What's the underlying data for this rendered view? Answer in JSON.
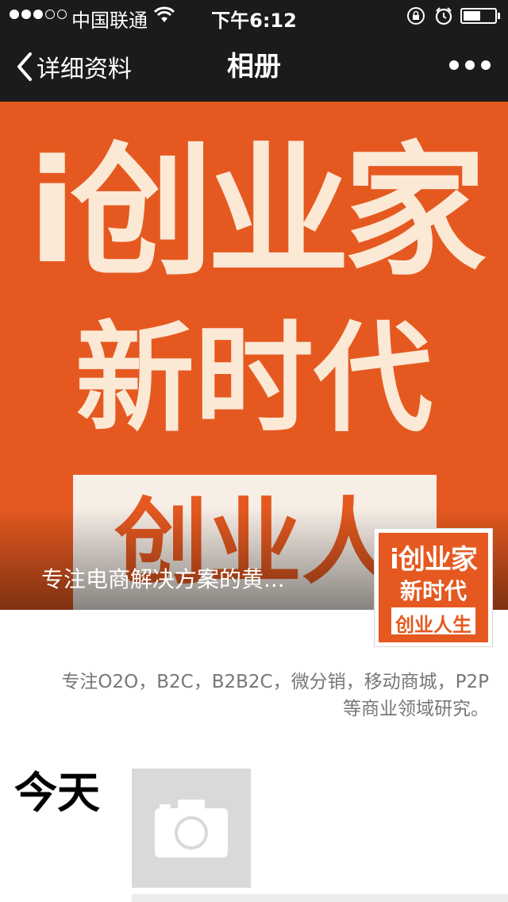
{
  "status_bar": {
    "carrier": "中国联通",
    "time": "下午6:12",
    "battery_level": 0.55
  },
  "nav": {
    "back_label": "详细资料",
    "title": "相册",
    "more_icon": "ellipsis-icon"
  },
  "cover": {
    "line1": "i创业家",
    "line2": "新时代",
    "box_text": "创业人生",
    "caption": "专注电商解决方案的黄..."
  },
  "avatar": {
    "line1": "i创业家",
    "line2": "新时代",
    "line3": "创业人生"
  },
  "signature": "专注O2O，B2C，B2B2C，微分销，移动商城，P2P等商业领域研究。",
  "timeline": {
    "day_label": "今天",
    "post_icon": "camera-icon"
  },
  "colors": {
    "brand_orange": "#e55920",
    "bar_background": "#1b1b1d"
  }
}
